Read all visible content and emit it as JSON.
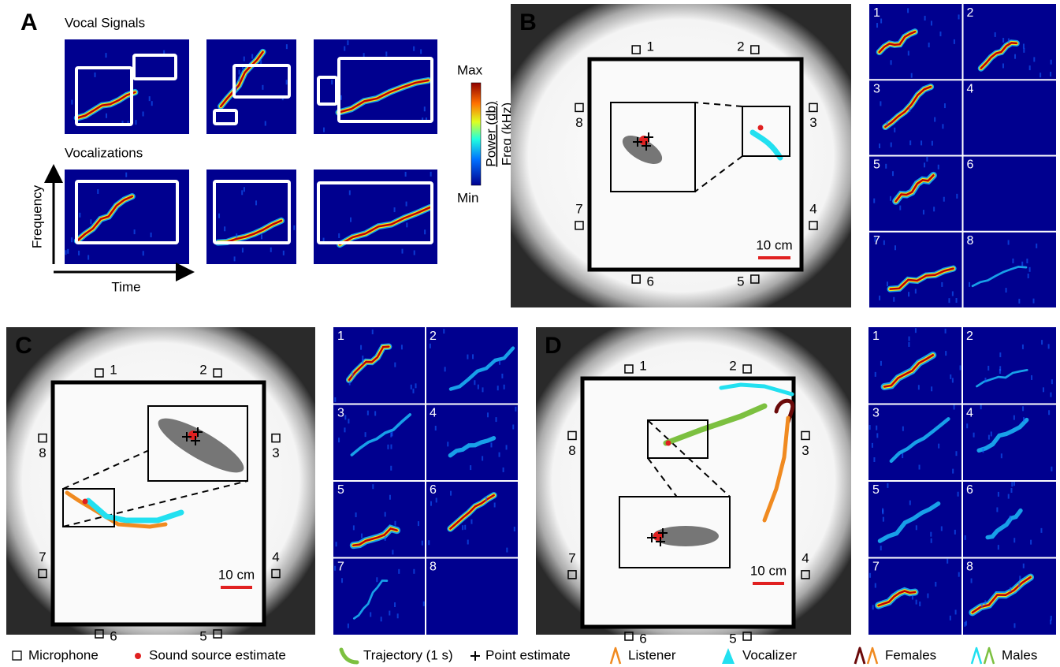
{
  "panel_a": {
    "label": "A",
    "top_title": "Vocal Signals",
    "bottom_title": "Vocalizations",
    "y_axis": "Frequency",
    "x_axis": "Time",
    "colorbar": {
      "max": "Max",
      "min": "Min",
      "numerator": "Power (db)",
      "denominator": "Freq (kHz)"
    }
  },
  "panels": [
    {
      "label": "B",
      "microphones": [
        "1",
        "2",
        "3",
        "4",
        "5",
        "6",
        "7",
        "8"
      ],
      "scale_bar": "10 cm",
      "channels": [
        "1",
        "2",
        "3",
        "4",
        "5",
        "6",
        "7",
        "8"
      ]
    },
    {
      "label": "C",
      "microphones": [
        "1",
        "2",
        "3",
        "4",
        "5",
        "6",
        "7",
        "8"
      ],
      "scale_bar": "10 cm",
      "channels": [
        "1",
        "2",
        "3",
        "4",
        "5",
        "6",
        "7",
        "8"
      ]
    },
    {
      "label": "D",
      "microphones": [
        "1",
        "2",
        "3",
        "4",
        "5",
        "6",
        "7",
        "8"
      ],
      "scale_bar": "10 cm",
      "channels": [
        "1",
        "2",
        "3",
        "4",
        "5",
        "6",
        "7",
        "8"
      ]
    }
  ],
  "legend": [
    "Microphone",
    "Sound source estimate",
    "Trajectory (1 s)",
    "Point estimate",
    "Listener",
    "Vocalizer",
    "Females",
    "Males"
  ]
}
